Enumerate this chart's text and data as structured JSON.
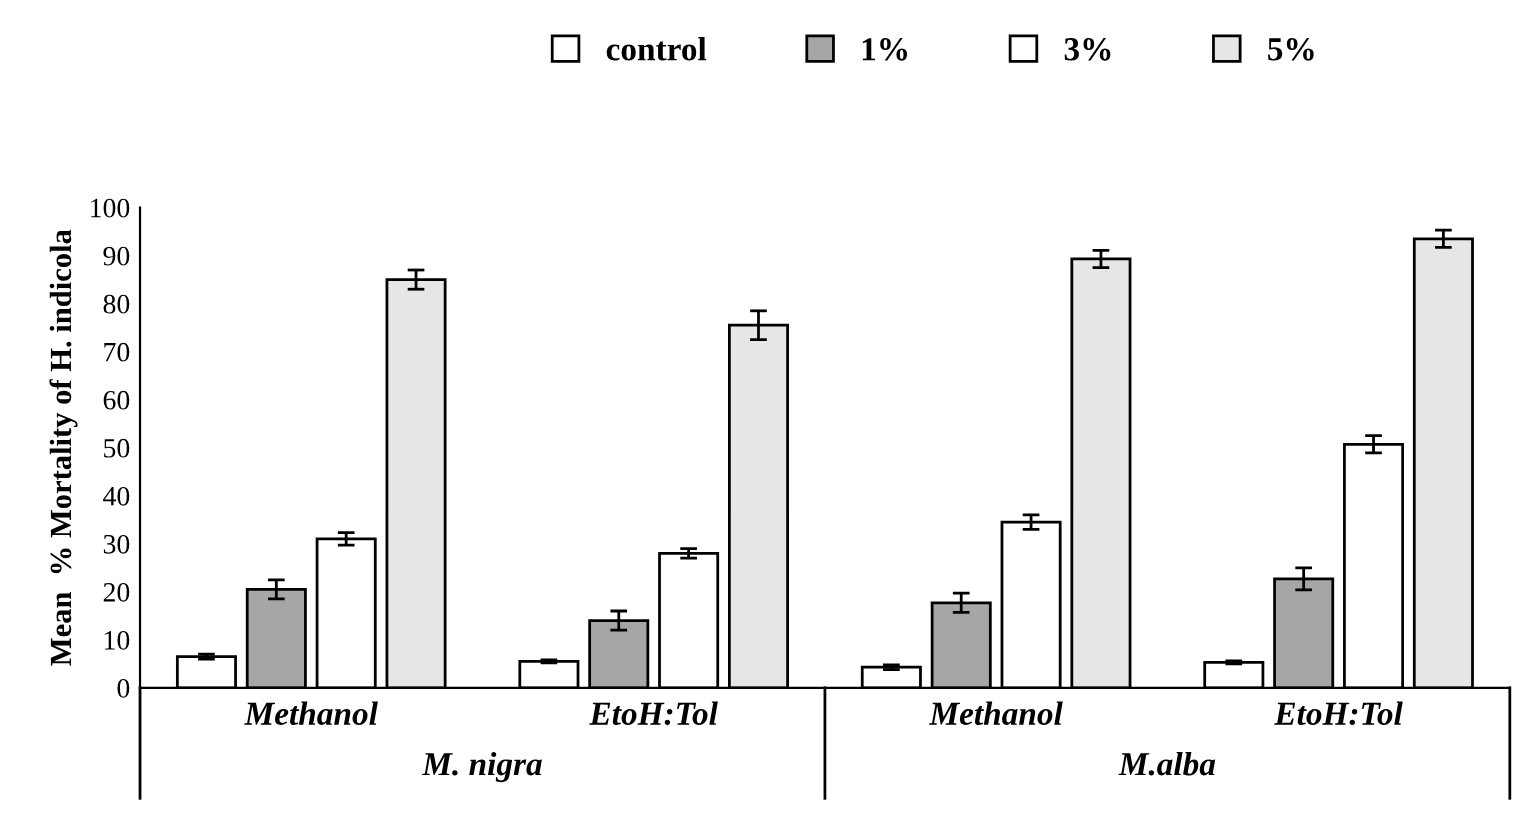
{
  "chart_data": {
    "type": "bar",
    "ylabel": "Mean  % Mortality of H. indicola",
    "categories": [
      "Methanol",
      "EtoH:Tol",
      "Methanol",
      "EtoH:Tol"
    ],
    "series": [
      {
        "name": "control",
        "color": "#ffffff",
        "values": [
          6.5,
          5.5,
          4.3,
          5.3
        ],
        "errors": [
          0.5,
          0.3,
          0.5,
          0.3
        ]
      },
      {
        "name": "1%",
        "color": "#a6a6a6",
        "values": [
          20.5,
          14,
          17.7,
          22.7
        ],
        "errors": [
          2,
          2,
          2,
          2.3
        ]
      },
      {
        "name": "3%",
        "color": "#ffffff",
        "values": [
          31,
          28,
          34.5,
          50.7
        ],
        "errors": [
          1.3,
          1,
          1.5,
          1.8
        ]
      },
      {
        "name": "5%",
        "color": "#e6e6e6",
        "values": [
          85,
          75.5,
          89.3,
          93.5
        ],
        "errors": [
          2,
          3,
          1.8,
          1.8
        ]
      }
    ],
    "annotations": [
      "M. nigra",
      "M.alba"
    ],
    "ylim": [
      0,
      100
    ],
    "yticks": [
      0,
      10,
      20,
      30,
      40,
      50,
      60,
      70,
      80,
      90,
      100
    ],
    "grid": false,
    "legend": "top"
  }
}
